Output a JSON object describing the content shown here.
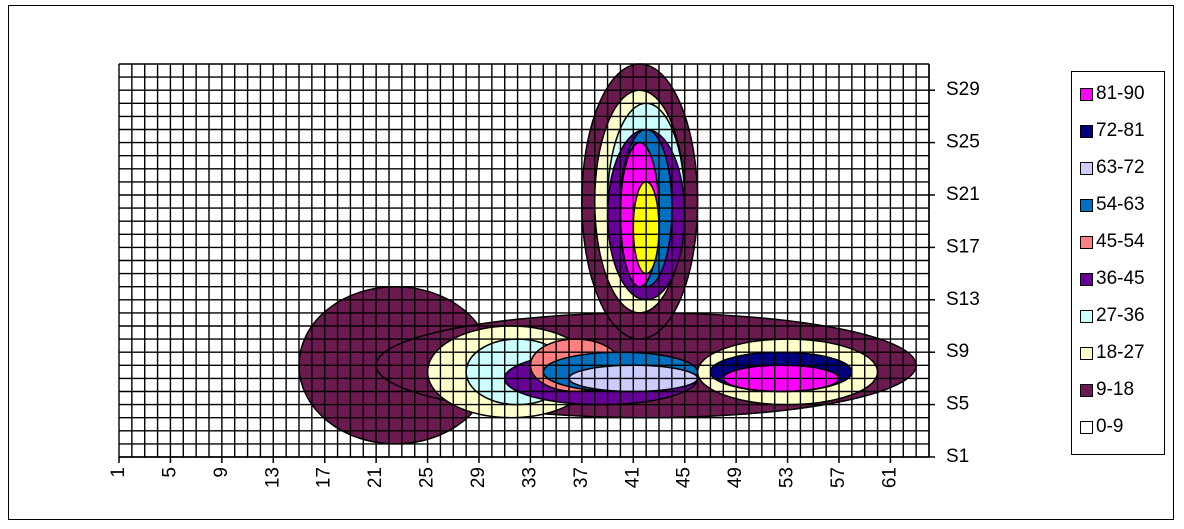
{
  "chart_data": {
    "type": "heatmap",
    "subtype": "contour",
    "title": "",
    "xlabel": "",
    "ylabel": "",
    "x_range": [
      1,
      64
    ],
    "y_range": [
      1,
      31
    ],
    "x_ticks": [
      "1",
      "5",
      "9",
      "13",
      "17",
      "21",
      "25",
      "29",
      "33",
      "37",
      "41",
      "45",
      "49",
      "53",
      "57",
      "61"
    ],
    "y_ticks": [
      "S1",
      "S5",
      "S9",
      "S13",
      "S17",
      "S21",
      "S25",
      "S29"
    ],
    "grid": true,
    "legend_position": "right",
    "legend": [
      {
        "label": "81-90",
        "color": "#ff00ff"
      },
      {
        "label": "72-81",
        "color": "#000080"
      },
      {
        "label": "63-72",
        "color": "#ccccff"
      },
      {
        "label": "54-63",
        "color": "#0070c0"
      },
      {
        "label": "45-54",
        "color": "#ff8080"
      },
      {
        "label": "36-45",
        "color": "#660099"
      },
      {
        "label": "27-36",
        "color": "#ccffff"
      },
      {
        "label": "18-27",
        "color": "#ffffcc"
      },
      {
        "label": "9-18",
        "color": "#6b1b4f"
      },
      {
        "label": "0-9",
        "color": "#ffffff"
      }
    ],
    "regions": [
      {
        "x": [
          1,
          63
        ],
        "y": [
          1,
          31
        ],
        "range": "0-9"
      },
      {
        "x": [
          15,
          30
        ],
        "y": [
          2,
          14
        ],
        "range": "9-18"
      },
      {
        "x": [
          21,
          63
        ],
        "y": [
          4,
          12
        ],
        "range": "9-18"
      },
      {
        "x": [
          37,
          46
        ],
        "y": [
          10,
          31
        ],
        "range": "9-18"
      },
      {
        "x": [
          25,
          38
        ],
        "y": [
          4,
          11
        ],
        "range": "18-27"
      },
      {
        "x": [
          38,
          45
        ],
        "y": [
          12,
          29
        ],
        "range": "18-27"
      },
      {
        "x": [
          46,
          60
        ],
        "y": [
          5,
          10
        ],
        "range": "18-27"
      },
      {
        "x": [
          28,
          36
        ],
        "y": [
          5,
          10
        ],
        "range": "27-36"
      },
      {
        "x": [
          39,
          45
        ],
        "y": [
          13,
          28
        ],
        "range": "27-36"
      },
      {
        "x": [
          31,
          46
        ],
        "y": [
          5,
          9
        ],
        "range": "36-45"
      },
      {
        "x": [
          39,
          45
        ],
        "y": [
          13,
          26
        ],
        "range": "36-45"
      },
      {
        "x": [
          33,
          40
        ],
        "y": [
          6,
          10
        ],
        "range": "45-54"
      },
      {
        "x": [
          34,
          46
        ],
        "y": [
          6,
          9
        ],
        "range": "54-63"
      },
      {
        "x": [
          40,
          44
        ],
        "y": [
          14,
          26
        ],
        "range": "54-63"
      },
      {
        "x": [
          36,
          46
        ],
        "y": [
          6,
          8
        ],
        "range": "63-72"
      },
      {
        "x": [
          40,
          43
        ],
        "y": [
          14,
          25
        ],
        "range": "72-81"
      },
      {
        "x": [
          47,
          58
        ],
        "y": [
          6,
          9
        ],
        "range": "72-81"
      },
      {
        "x": [
          40,
          43
        ],
        "y": [
          14,
          25
        ],
        "range": "81-90"
      },
      {
        "x": [
          48,
          57
        ],
        "y": [
          6,
          8
        ],
        "range": "81-90"
      },
      {
        "x": [
          41,
          43
        ],
        "y": [
          15,
          22
        ],
        "range": "yellow-core"
      }
    ]
  }
}
